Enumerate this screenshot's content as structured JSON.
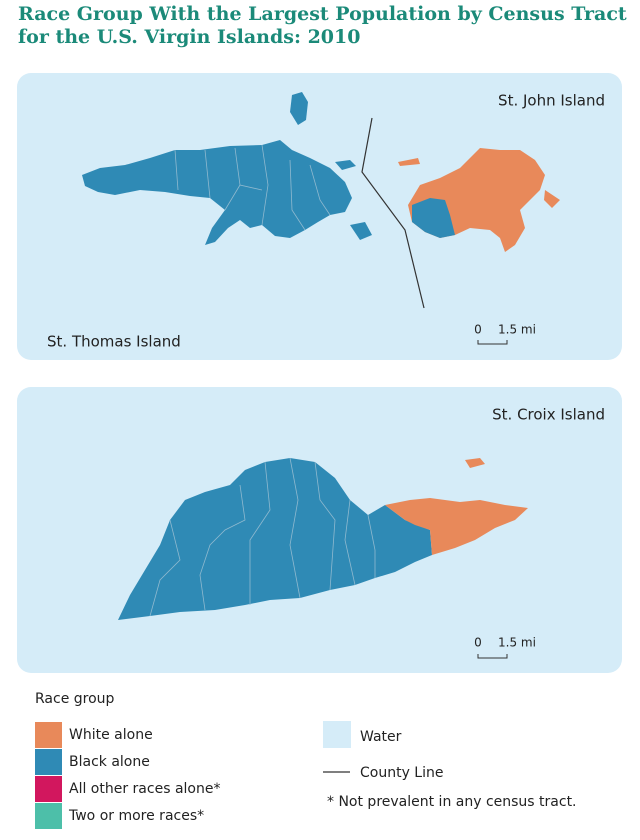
{
  "title": [
    "Race Group With the Largest Population by Census Tract",
    "for the U.S. Virgin Islands: 2010"
  ],
  "maps": [
    {
      "labels": [
        "St. John Island",
        "St. Thomas Island"
      ],
      "scale": [
        "0",
        "1.5 mi"
      ]
    },
    {
      "labels": [
        "St. Croix Island"
      ],
      "scale": [
        "0",
        "1.5 mi"
      ]
    }
  ],
  "legend": {
    "title": "Race group",
    "items": [
      {
        "label": "White alone",
        "color": "#e8895a"
      },
      {
        "label": "Black alone",
        "color": "#2f8ab5"
      },
      {
        "label": "All other races alone*",
        "color": "#d2175e"
      },
      {
        "label": "Two or more races*",
        "color": "#4dbfa9"
      }
    ],
    "water": {
      "label": "Water",
      "color": "#d5ecf8"
    },
    "county_line": "County Line",
    "note": "* Not prevalent in any census tract."
  }
}
